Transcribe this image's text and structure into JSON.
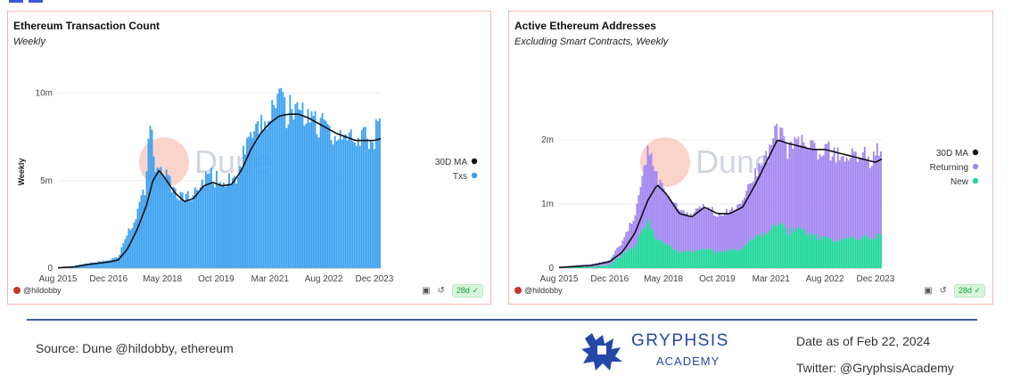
{
  "chart_data": [
    {
      "type": "bar",
      "title": "Ethereum Transaction Count",
      "subtitle": "Weekly",
      "ylabel": "Weekly",
      "xlabel": "",
      "x_range": [
        "2015-08",
        "2024-02"
      ],
      "ylim": [
        0,
        11000000
      ],
      "y_ticks": [
        0,
        5000000,
        10000000
      ],
      "y_tick_labels": [
        "0",
        "5m",
        "10m"
      ],
      "x_ticks": [
        "2015-08",
        "2016-12",
        "2018-05",
        "2019-10",
        "2021-03",
        "2022-08",
        "2023-12"
      ],
      "x_tick_labels": [
        "Aug 2015",
        "Dec 2016",
        "May 2018",
        "Oct 2019",
        "Mar 2021",
        "Aug 2022",
        "Dec 2023"
      ],
      "legend_position": "right",
      "watermark": "Dune",
      "series": [
        {
          "name": "Txs",
          "type": "bar",
          "color": "#3fa2ef",
          "points": [
            [
              "2015-08",
              0.02
            ],
            [
              "2016-01",
              0.1
            ],
            [
              "2016-06",
              0.3
            ],
            [
              "2016-12",
              0.45
            ],
            [
              "2017-03",
              0.6
            ],
            [
              "2017-06",
              1.9
            ],
            [
              "2017-09",
              3.0
            ],
            [
              "2017-12",
              4.8
            ],
            [
              "2018-01",
              7.8
            ],
            [
              "2018-03",
              5.8
            ],
            [
              "2018-05",
              5.3
            ],
            [
              "2018-08",
              4.6
            ],
            [
              "2018-11",
              3.9
            ],
            [
              "2019-02",
              3.9
            ],
            [
              "2019-05",
              4.6
            ],
            [
              "2019-07",
              5.2
            ],
            [
              "2019-10",
              5.0
            ],
            [
              "2020-01",
              4.8
            ],
            [
              "2020-04",
              5.1
            ],
            [
              "2020-07",
              6.4
            ],
            [
              "2020-10",
              7.3
            ],
            [
              "2021-01",
              8.1
            ],
            [
              "2021-03",
              8.4
            ],
            [
              "2021-05",
              9.9
            ],
            [
              "2021-08",
              8.7
            ],
            [
              "2021-11",
              8.9
            ],
            [
              "2022-02",
              8.5
            ],
            [
              "2022-05",
              8.3
            ],
            [
              "2022-08",
              7.9
            ],
            [
              "2022-11",
              7.5
            ],
            [
              "2023-02",
              7.2
            ],
            [
              "2023-05",
              7.1
            ],
            [
              "2023-08",
              7.2
            ],
            [
              "2023-12",
              7.4
            ],
            [
              "2024-02",
              8.3
            ]
          ],
          "unit": "m"
        },
        {
          "name": "30D MA",
          "type": "line",
          "color": "#111111",
          "points": [
            [
              "2015-08",
              0.02
            ],
            [
              "2016-01",
              0.07
            ],
            [
              "2016-06",
              0.22
            ],
            [
              "2016-12",
              0.35
            ],
            [
              "2017-03",
              0.45
            ],
            [
              "2017-06",
              1.1
            ],
            [
              "2017-09",
              2.2
            ],
            [
              "2017-12",
              3.6
            ],
            [
              "2018-02",
              5.0
            ],
            [
              "2018-04",
              5.6
            ],
            [
              "2018-06",
              5.1
            ],
            [
              "2018-09",
              4.3
            ],
            [
              "2018-12",
              3.8
            ],
            [
              "2019-03",
              4.0
            ],
            [
              "2019-06",
              4.7
            ],
            [
              "2019-09",
              4.9
            ],
            [
              "2019-12",
              4.7
            ],
            [
              "2020-03",
              4.8
            ],
            [
              "2020-06",
              5.6
            ],
            [
              "2020-09",
              6.8
            ],
            [
              "2020-12",
              7.7
            ],
            [
              "2021-03",
              8.3
            ],
            [
              "2021-06",
              8.7
            ],
            [
              "2021-09",
              8.8
            ],
            [
              "2021-12",
              8.8
            ],
            [
              "2022-03",
              8.6
            ],
            [
              "2022-06",
              8.3
            ],
            [
              "2022-09",
              8.0
            ],
            [
              "2022-12",
              7.7
            ],
            [
              "2023-03",
              7.5
            ],
            [
              "2023-06",
              7.3
            ],
            [
              "2023-09",
              7.3
            ],
            [
              "2023-12",
              7.3
            ],
            [
              "2024-02",
              7.4
            ]
          ],
          "unit": "m"
        }
      ],
      "legend": [
        "30D MA",
        "Txs"
      ],
      "legend_colors": [
        "#111111",
        "#3fa2ef"
      ]
    },
    {
      "type": "bar",
      "stacked": true,
      "title": "Active Ethereum Addresses",
      "subtitle": "Excluding Smart Contracts, Weekly",
      "xlabel": "",
      "ylabel": "",
      "x_range": [
        "2015-08",
        "2024-02"
      ],
      "ylim": [
        0,
        3000000
      ],
      "y_ticks": [
        0,
        1000000,
        2000000
      ],
      "y_tick_labels": [
        "0",
        "1m",
        "2m"
      ],
      "x_ticks": [
        "2015-08",
        "2016-12",
        "2018-05",
        "2019-10",
        "2021-03",
        "2022-08",
        "2023-12"
      ],
      "x_tick_labels": [
        "Aug 2015",
        "Dec 2016",
        "May 2018",
        "Oct 2019",
        "Mar 2021",
        "Aug 2022",
        "Dec 2023"
      ],
      "legend_position": "right",
      "watermark": "Dune",
      "series": [
        {
          "name": "New",
          "type": "bar",
          "color": "#1fd699",
          "points": [
            [
              "2015-08",
              0.01
            ],
            [
              "2016-06",
              0.02
            ],
            [
              "2016-12",
              0.05
            ],
            [
              "2017-04",
              0.2
            ],
            [
              "2017-08",
              0.35
            ],
            [
              "2017-12",
              0.7
            ],
            [
              "2018-02",
              0.5
            ],
            [
              "2018-06",
              0.35
            ],
            [
              "2018-10",
              0.25
            ],
            [
              "2019-02",
              0.25
            ],
            [
              "2019-06",
              0.3
            ],
            [
              "2019-10",
              0.25
            ],
            [
              "2020-02",
              0.28
            ],
            [
              "2020-06",
              0.3
            ],
            [
              "2020-10",
              0.45
            ],
            [
              "2021-02",
              0.55
            ],
            [
              "2021-05",
              0.7
            ],
            [
              "2021-08",
              0.55
            ],
            [
              "2021-12",
              0.6
            ],
            [
              "2022-04",
              0.5
            ],
            [
              "2022-08",
              0.45
            ],
            [
              "2022-12",
              0.42
            ],
            [
              "2023-04",
              0.45
            ],
            [
              "2023-08",
              0.45
            ],
            [
              "2023-12",
              0.48
            ],
            [
              "2024-02",
              0.5
            ]
          ],
          "unit": "m"
        },
        {
          "name": "Returning",
          "type": "bar",
          "color": "#a387f2",
          "points": [
            [
              "2015-08",
              0.01
            ],
            [
              "2016-06",
              0.04
            ],
            [
              "2016-12",
              0.07
            ],
            [
              "2017-04",
              0.2
            ],
            [
              "2017-08",
              0.45
            ],
            [
              "2017-12",
              1.1
            ],
            [
              "2018-02",
              1.0
            ],
            [
              "2018-06",
              0.8
            ],
            [
              "2018-10",
              0.6
            ],
            [
              "2019-02",
              0.55
            ],
            [
              "2019-06",
              0.65
            ],
            [
              "2019-10",
              0.55
            ],
            [
              "2020-02",
              0.6
            ],
            [
              "2020-06",
              0.7
            ],
            [
              "2020-10",
              0.95
            ],
            [
              "2021-02",
              1.2
            ],
            [
              "2021-05",
              1.45
            ],
            [
              "2021-08",
              1.3
            ],
            [
              "2021-12",
              1.35
            ],
            [
              "2022-04",
              1.35
            ],
            [
              "2022-08",
              1.35
            ],
            [
              "2022-12",
              1.3
            ],
            [
              "2023-04",
              1.25
            ],
            [
              "2023-08",
              1.25
            ],
            [
              "2023-12",
              1.2
            ],
            [
              "2024-02",
              1.35
            ]
          ],
          "unit": "m"
        },
        {
          "name": "30D MA",
          "type": "line",
          "color": "#111111",
          "points": [
            [
              "2015-08",
              0.01
            ],
            [
              "2016-06",
              0.04
            ],
            [
              "2016-12",
              0.1
            ],
            [
              "2017-04",
              0.25
            ],
            [
              "2017-08",
              0.55
            ],
            [
              "2017-12",
              1.05
            ],
            [
              "2018-03",
              1.3
            ],
            [
              "2018-06",
              1.15
            ],
            [
              "2018-10",
              0.85
            ],
            [
              "2019-02",
              0.8
            ],
            [
              "2019-06",
              0.95
            ],
            [
              "2019-10",
              0.85
            ],
            [
              "2020-02",
              0.85
            ],
            [
              "2020-06",
              0.95
            ],
            [
              "2020-10",
              1.3
            ],
            [
              "2021-02",
              1.7
            ],
            [
              "2021-05",
              2.0
            ],
            [
              "2021-08",
              1.95
            ],
            [
              "2021-12",
              1.9
            ],
            [
              "2022-04",
              1.85
            ],
            [
              "2022-08",
              1.85
            ],
            [
              "2022-12",
              1.8
            ],
            [
              "2023-04",
              1.75
            ],
            [
              "2023-08",
              1.7
            ],
            [
              "2023-12",
              1.65
            ],
            [
              "2024-02",
              1.7
            ]
          ],
          "unit": "m"
        }
      ],
      "legend": [
        "30D MA",
        "Returning",
        "New"
      ],
      "legend_colors": [
        "#111111",
        "#a387f2",
        "#1fd699"
      ]
    }
  ],
  "panels": [
    {
      "title": "Ethereum Transaction Count",
      "subtitle": "Weekly",
      "user": "@hildobby",
      "badge": "28d"
    },
    {
      "title": "Active Ethereum Addresses",
      "subtitle": "Excluding Smart Contracts, Weekly",
      "user": "@hildobby",
      "badge": "28d"
    }
  ],
  "footer": {
    "source": "Source: Dune  @hildobby, ethereum",
    "logo_line1": "GRYPHSIS",
    "logo_line2": "ACADEMY",
    "date": "Date as of Feb 22, 2024",
    "twitter": "Twitter: @GryphsisAcademy"
  }
}
